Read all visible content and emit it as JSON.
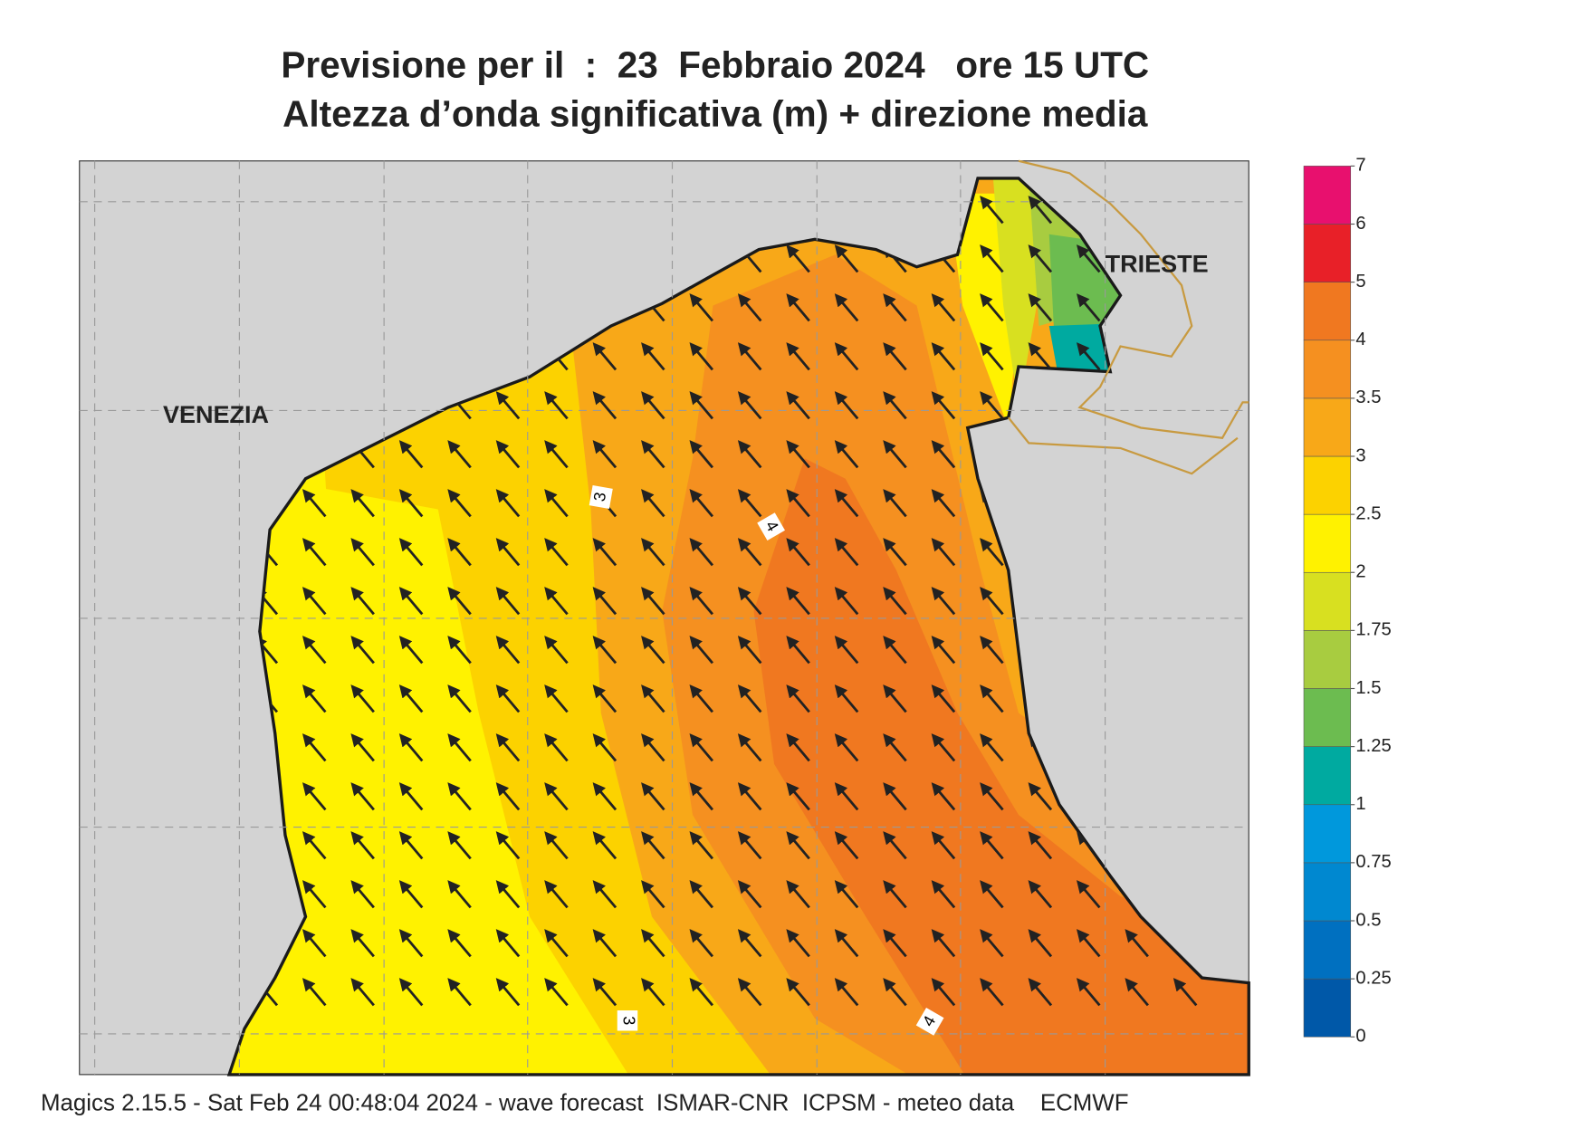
{
  "header": {
    "title": "Previsione per il  :  23  Febbraio 2024   ore 15 UTC",
    "subtitle": "Altezza d’onda significativa (m) + direzione media"
  },
  "map": {
    "place_labels": [
      "VENEZIA",
      "TRIESTE"
    ],
    "contour_labels": [
      "3",
      "4",
      "3",
      "4"
    ]
  },
  "legend": {
    "ticks": [
      0,
      0.25,
      0.5,
      0.75,
      1,
      1.25,
      1.5,
      1.75,
      2,
      2.5,
      3,
      3.5,
      4,
      5,
      6,
      7
    ],
    "colors": [
      "#0058a8",
      "#0070c0",
      "#0088d0",
      "#0098dc",
      "#00aaa0",
      "#6cbc50",
      "#a8cc40",
      "#d8e020",
      "#fff200",
      "#fcd200",
      "#f8a818",
      "#f59020",
      "#f07820",
      "#e82028",
      "#e8106e"
    ]
  },
  "footer": "Magics 2.15.5 - Sat Feb 24 00:48:04 2024 - wave forecast  ISMAR-CNR  ICPSM - meteo data    ECMWF"
}
